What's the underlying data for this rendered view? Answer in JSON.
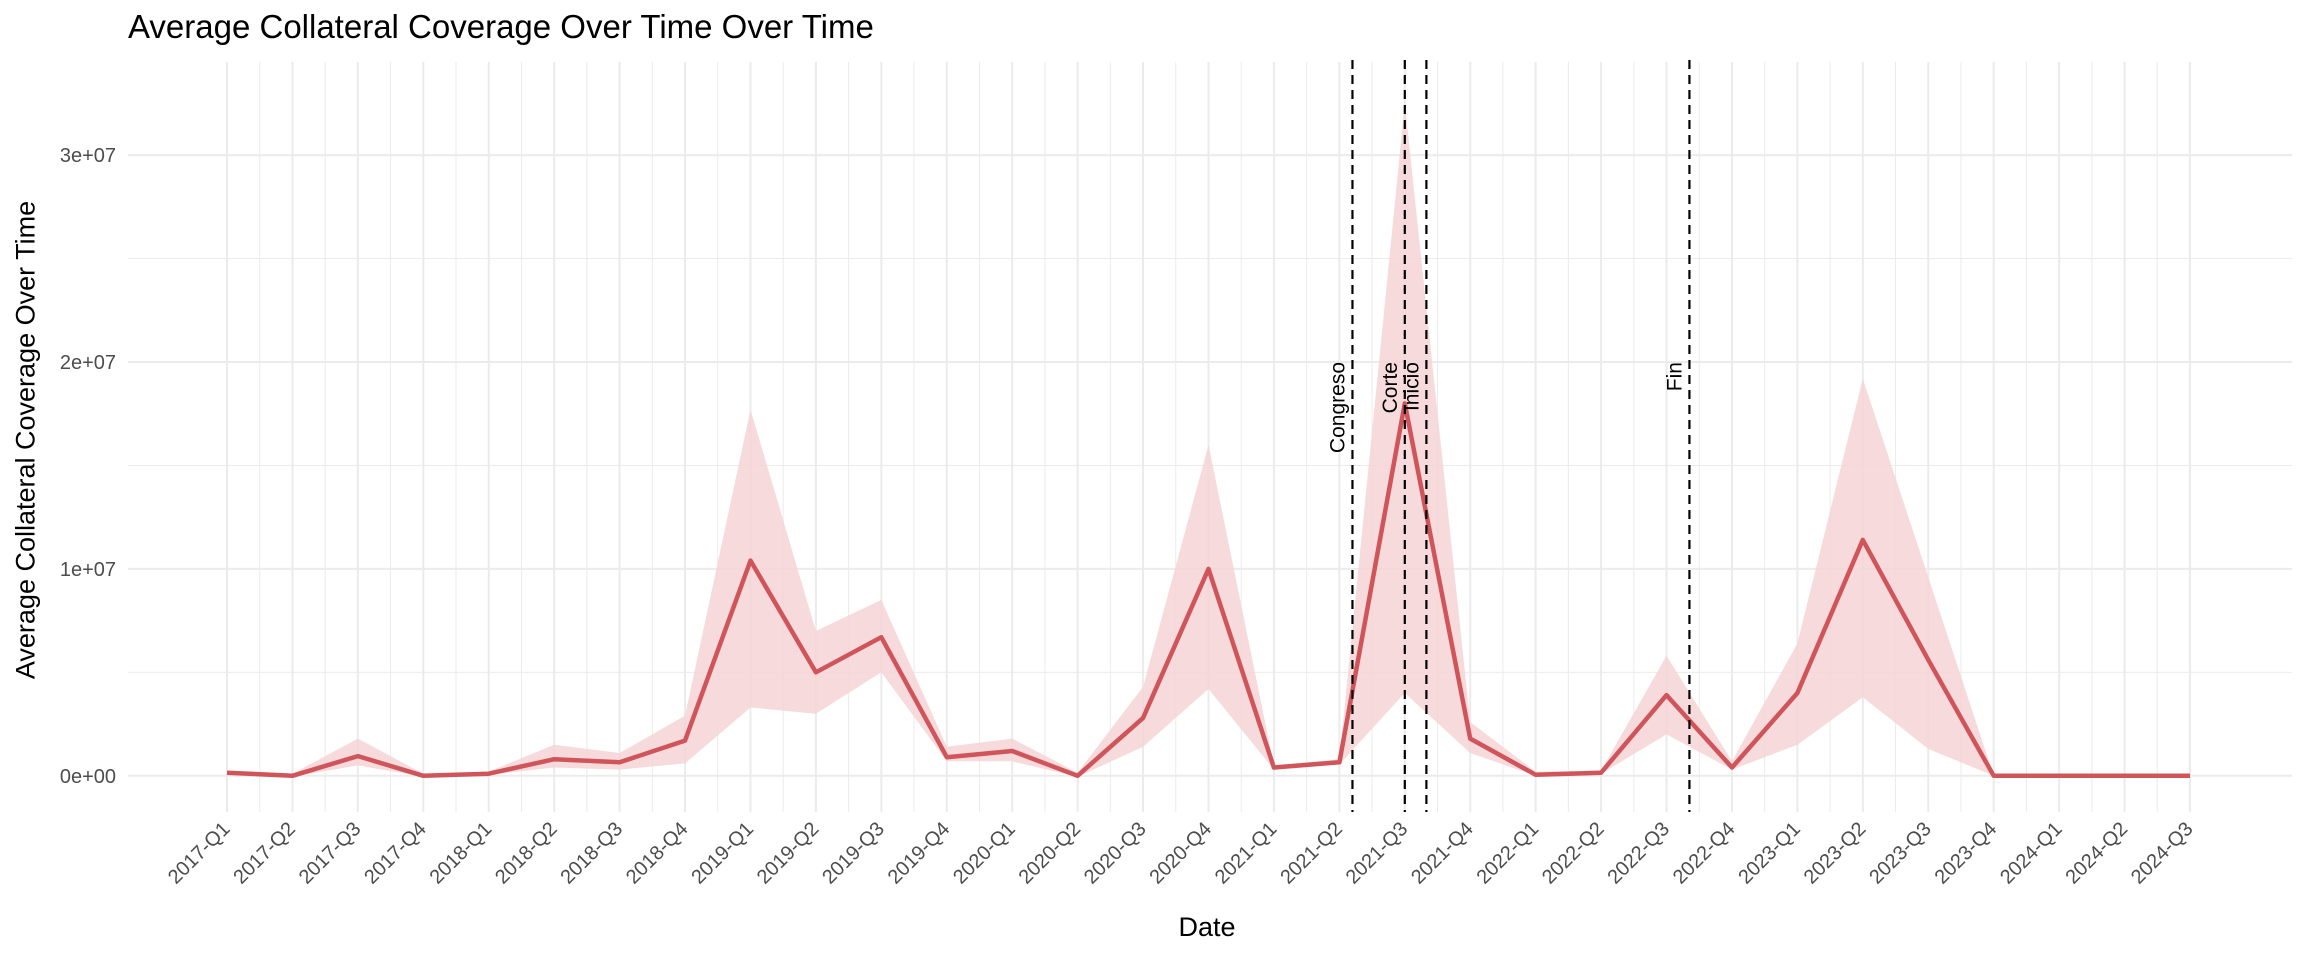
{
  "chart_data": {
    "type": "line",
    "title": "Average Collateral Coverage Over Time Over Time",
    "xlabel": "Date",
    "ylabel": "Average Collateral Coverage Over Time",
    "categories": [
      "2017-Q1",
      "2017-Q2",
      "2017-Q3",
      "2017-Q4",
      "2018-Q1",
      "2018-Q2",
      "2018-Q3",
      "2018-Q4",
      "2019-Q1",
      "2019-Q2",
      "2019-Q3",
      "2019-Q4",
      "2020-Q1",
      "2020-Q2",
      "2020-Q3",
      "2020-Q4",
      "2021-Q1",
      "2021-Q2",
      "2021-Q3",
      "2021-Q4",
      "2022-Q1",
      "2022-Q2",
      "2022-Q3",
      "2022-Q4",
      "2023-Q1",
      "2023-Q2",
      "2023-Q3",
      "2023-Q4",
      "2024-Q1",
      "2024-Q2",
      "2024-Q3"
    ],
    "series": [
      {
        "values": [
          150000,
          0,
          950000,
          0,
          100000,
          800000,
          650000,
          1700000,
          10400000,
          5000000,
          6700000,
          900000,
          1200000,
          0,
          2800000,
          10000000,
          400000,
          650000,
          18000000,
          1800000,
          50000,
          150000,
          3900000,
          400000,
          4000000,
          11400000,
          5600000,
          0,
          0,
          0,
          0
        ],
        "lower": [
          100000,
          -50000,
          500000,
          -50000,
          50000,
          400000,
          300000,
          600000,
          3300000,
          3000000,
          5000000,
          700000,
          700000,
          -50000,
          1400000,
          4200000,
          300000,
          550000,
          4000000,
          1100000,
          0,
          100000,
          2000000,
          300000,
          1500000,
          3800000,
          1300000,
          0,
          0,
          0,
          0
        ],
        "upper": [
          250000,
          100000,
          1800000,
          100000,
          200000,
          1500000,
          1100000,
          2900000,
          17700000,
          7000000,
          8500000,
          1400000,
          1800000,
          150000,
          4300000,
          16000000,
          500000,
          800000,
          32500000,
          2600000,
          200000,
          250000,
          5800000,
          700000,
          6400000,
          19200000,
          9600000,
          0,
          0,
          0,
          0
        ]
      }
    ],
    "annotations": [
      {
        "label": "Congreso",
        "x": 17.2
      },
      {
        "label": "Corte",
        "x": 18.0
      },
      {
        "label": "Inicio",
        "x": 18.33
      },
      {
        "label": "Fin",
        "x": 22.35
      }
    ],
    "yticks": [
      0,
      10000000,
      20000000,
      30000000
    ],
    "ytick_labels": [
      "0e+00",
      "1e+07",
      "2e+07",
      "3e+07"
    ],
    "ylim": [
      -1750000,
      34500000
    ],
    "grid": true,
    "colors": {
      "line": "#d0555b",
      "band": "#f4d4d6",
      "grid": "#ebebeb",
      "annotation": "#000000"
    }
  }
}
